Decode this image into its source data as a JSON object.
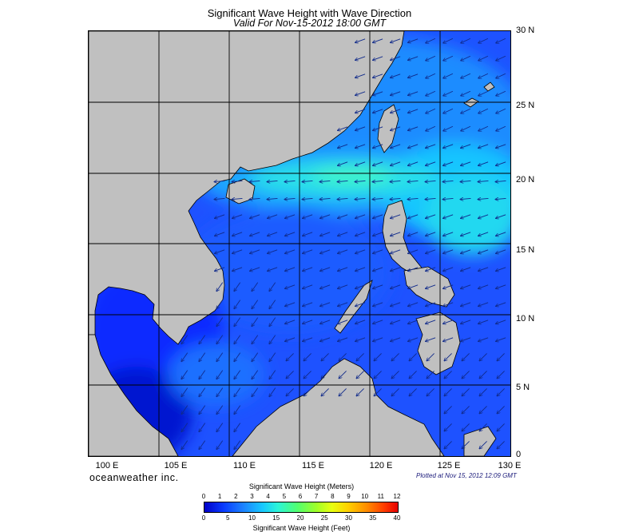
{
  "title": "Significant Wave Height with Wave Direction",
  "subtitle": "Valid For Nov-15-2012 18:00 GMT",
  "map": {
    "lat_labels": [
      "30 N",
      "25 N",
      "20 N",
      "15 N",
      "10 N",
      "5 N",
      "0"
    ],
    "lon_labels": [
      "100 E",
      "105 E",
      "110 E",
      "115 E",
      "120 E",
      "125 E",
      "130 E"
    ],
    "extent": {
      "lon_min": 100,
      "lon_max": 130,
      "lat_min": 0,
      "lat_max": 30
    },
    "land_color": "#c0c0c0",
    "wave_direction": "NE to SW"
  },
  "brand": "oceanweather inc.",
  "plotted": "Plotted at Nov 15, 2012 12:09 GMT",
  "colorbar": {
    "meters_title": "Significant Wave Height (Meters)",
    "feet_title": "Significant Wave Height (Feet)",
    "meters_ticks": [
      "0",
      "1",
      "2",
      "3",
      "4",
      "5",
      "6",
      "7",
      "8",
      "9",
      "10",
      "11",
      "12"
    ],
    "feet_ticks": [
      "0",
      "5",
      "10",
      "15",
      "20",
      "25",
      "30",
      "35",
      "40"
    ]
  }
}
